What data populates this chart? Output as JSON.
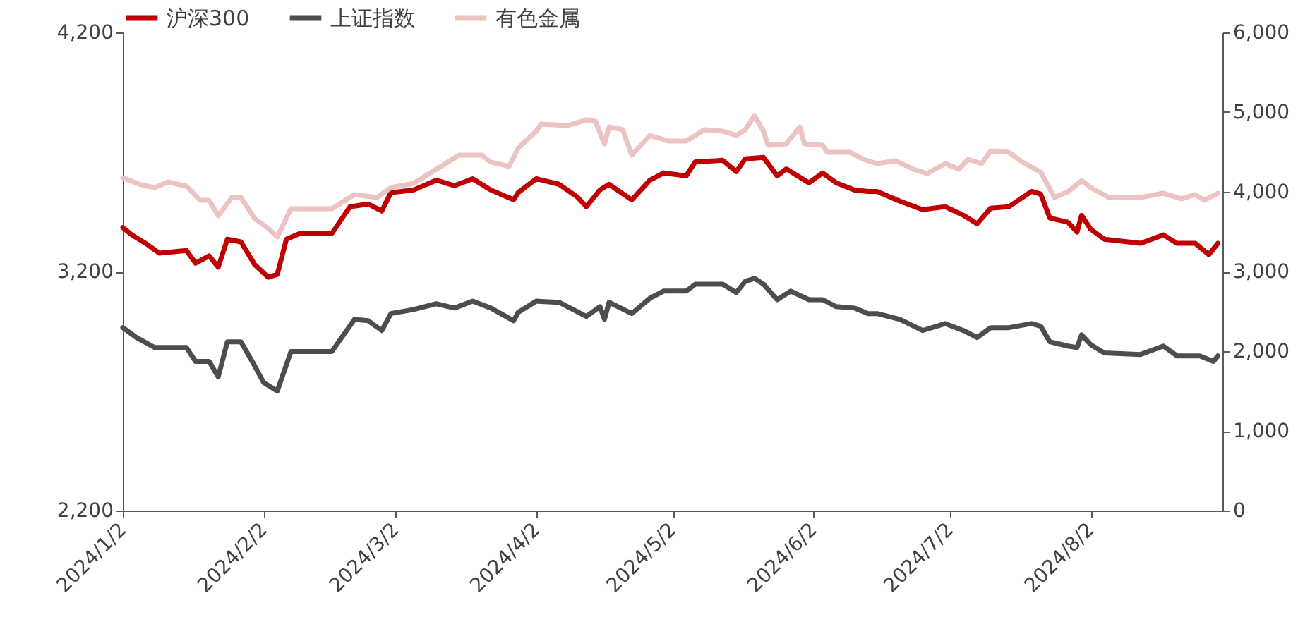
{
  "chart_data": {
    "type": "line",
    "legend": "top",
    "grid": false,
    "xlim": [
      "2024-01-02",
      "2024-08-31"
    ],
    "xticks": [
      {
        "value": "2024-01-02",
        "label": "2024/1/2"
      },
      {
        "value": "2024-02-02",
        "label": "2024/2/2"
      },
      {
        "value": "2024-03-02",
        "label": "2024/3/2"
      },
      {
        "value": "2024-04-02",
        "label": "2024/4/2"
      },
      {
        "value": "2024-05-02",
        "label": "2024/5/2"
      },
      {
        "value": "2024-06-02",
        "label": "2024/6/2"
      },
      {
        "value": "2024-07-02",
        "label": "2024/7/2"
      },
      {
        "value": "2024-08-02",
        "label": "2024/8/2"
      }
    ],
    "ylim": [
      2200,
      4200
    ],
    "yticks": [
      {
        "value": 2200,
        "label": "2,200"
      },
      {
        "value": 3200,
        "label": "3,200"
      },
      {
        "value": 4200,
        "label": "4,200"
      }
    ],
    "y2lim": [
      0,
      6000
    ],
    "y2ticks": [
      {
        "value": 0,
        "label": "0"
      },
      {
        "value": 1000,
        "label": "1,000"
      },
      {
        "value": 2000,
        "label": "2,000"
      },
      {
        "value": 3000,
        "label": "3,000"
      },
      {
        "value": 4000,
        "label": "4,000"
      },
      {
        "value": 5000,
        "label": "5,000"
      },
      {
        "value": 6000,
        "label": "6,000"
      }
    ],
    "series": [
      {
        "name": "沪深300",
        "color": "#c00000",
        "axis": "y",
        "x": [
          "2024-01-02",
          "2024-01-04",
          "2024-01-07",
          "2024-01-10",
          "2024-01-16",
          "2024-01-18",
          "2024-01-21",
          "2024-01-23",
          "2024-01-25",
          "2024-01-28",
          "2024-01-31",
          "2024-02-03",
          "2024-02-05",
          "2024-02-07",
          "2024-02-10",
          "2024-02-17",
          "2024-02-21",
          "2024-02-25",
          "2024-02-28",
          "2024-03-01",
          "2024-03-06",
          "2024-03-11",
          "2024-03-15",
          "2024-03-19",
          "2024-03-23",
          "2024-03-28",
          "2024-03-29",
          "2024-04-02",
          "2024-04-07",
          "2024-04-11",
          "2024-04-13",
          "2024-04-16",
          "2024-04-18",
          "2024-04-23",
          "2024-04-27",
          "2024-04-30",
          "2024-05-05",
          "2024-05-07",
          "2024-05-13",
          "2024-05-16",
          "2024-05-18",
          "2024-05-22",
          "2024-05-25",
          "2024-05-27",
          "2024-06-01",
          "2024-06-04",
          "2024-06-07",
          "2024-06-11",
          "2024-06-14",
          "2024-06-16",
          "2024-06-21",
          "2024-06-26",
          "2024-07-01",
          "2024-07-05",
          "2024-07-08",
          "2024-07-11",
          "2024-07-15",
          "2024-07-20",
          "2024-07-22",
          "2024-07-24",
          "2024-07-28",
          "2024-07-30",
          "2024-07-31",
          "2024-08-02",
          "2024-08-05",
          "2024-08-13",
          "2024-08-18",
          "2024-08-21",
          "2024-08-25",
          "2024-08-28",
          "2024-08-30"
        ],
        "values": [
          3384,
          3353,
          3318,
          3277,
          3288,
          3235,
          3265,
          3218,
          3335,
          3324,
          3229,
          3176,
          3188,
          3335,
          3359,
          3359,
          3471,
          3482,
          3453,
          3530,
          3541,
          3582,
          3559,
          3588,
          3541,
          3500,
          3530,
          3588,
          3565,
          3512,
          3471,
          3541,
          3565,
          3500,
          3582,
          3612,
          3600,
          3659,
          3665,
          3618,
          3671,
          3677,
          3600,
          3629,
          3571,
          3612,
          3571,
          3541,
          3535,
          3535,
          3494,
          3459,
          3471,
          3435,
          3400,
          3465,
          3471,
          3535,
          3524,
          3424,
          3406,
          3365,
          3435,
          3377,
          3335,
          3318,
          3353,
          3318,
          3318,
          3271,
          3318
        ]
      },
      {
        "name": "上证指数",
        "color": "#4d4d4d",
        "axis": "y",
        "x": [
          "2024-01-02",
          "2024-01-05",
          "2024-01-09",
          "2024-01-16",
          "2024-01-18",
          "2024-01-21",
          "2024-01-23",
          "2024-01-25",
          "2024-01-28",
          "2024-01-31",
          "2024-02-02",
          "2024-02-05",
          "2024-02-08",
          "2024-02-17",
          "2024-02-22",
          "2024-02-25",
          "2024-02-28",
          "2024-03-01",
          "2024-03-06",
          "2024-03-11",
          "2024-03-15",
          "2024-03-19",
          "2024-03-23",
          "2024-03-28",
          "2024-03-29",
          "2024-04-02",
          "2024-04-07",
          "2024-04-13",
          "2024-04-16",
          "2024-04-17",
          "2024-04-18",
          "2024-04-23",
          "2024-04-27",
          "2024-04-30",
          "2024-05-05",
          "2024-05-07",
          "2024-05-13",
          "2024-05-16",
          "2024-05-18",
          "2024-05-20",
          "2024-05-22",
          "2024-05-25",
          "2024-05-28",
          "2024-06-01",
          "2024-06-04",
          "2024-06-07",
          "2024-06-11",
          "2024-06-14",
          "2024-06-16",
          "2024-06-21",
          "2024-06-26",
          "2024-07-01",
          "2024-07-05",
          "2024-07-08",
          "2024-07-11",
          "2024-07-15",
          "2024-07-20",
          "2024-07-22",
          "2024-07-24",
          "2024-07-28",
          "2024-07-30",
          "2024-07-31",
          "2024-08-02",
          "2024-08-05",
          "2024-08-13",
          "2024-08-18",
          "2024-08-21",
          "2024-08-26",
          "2024-08-29",
          "2024-08-30"
        ],
        "values": [
          2965,
          2924,
          2882,
          2882,
          2824,
          2824,
          2759,
          2906,
          2906,
          2806,
          2735,
          2700,
          2865,
          2865,
          3000,
          2994,
          2953,
          3024,
          3041,
          3065,
          3047,
          3076,
          3047,
          2994,
          3029,
          3076,
          3071,
          3012,
          3053,
          3000,
          3071,
          3024,
          3088,
          3118,
          3118,
          3147,
          3147,
          3112,
          3159,
          3171,
          3147,
          3082,
          3118,
          3082,
          3082,
          3053,
          3047,
          3024,
          3024,
          3000,
          2953,
          2982,
          2953,
          2924,
          2965,
          2965,
          2982,
          2971,
          2906,
          2888,
          2882,
          2935,
          2894,
          2859,
          2853,
          2888,
          2847,
          2847,
          2824,
          2847
        ]
      },
      {
        "name": "有色金属",
        "color": "#ebc3c3",
        "axis": "y2",
        "x": [
          "2024-01-02",
          "2024-01-06",
          "2024-01-09",
          "2024-01-12",
          "2024-01-16",
          "2024-01-19",
          "2024-01-21",
          "2024-01-23",
          "2024-01-26",
          "2024-01-28",
          "2024-01-31",
          "2024-02-03",
          "2024-02-05",
          "2024-02-08",
          "2024-02-17",
          "2024-02-22",
          "2024-02-27",
          "2024-03-01",
          "2024-03-06",
          "2024-03-11",
          "2024-03-16",
          "2024-03-21",
          "2024-03-23",
          "2024-03-27",
          "2024-03-29",
          "2024-04-02",
          "2024-04-03",
          "2024-04-09",
          "2024-04-13",
          "2024-04-15",
          "2024-04-17",
          "2024-04-18",
          "2024-04-21",
          "2024-04-23",
          "2024-04-27",
          "2024-05-01",
          "2024-05-05",
          "2024-05-09",
          "2024-05-13",
          "2024-05-16",
          "2024-05-18",
          "2024-05-20",
          "2024-05-22",
          "2024-05-23",
          "2024-05-27",
          "2024-05-30",
          "2024-05-31",
          "2024-06-04",
          "2024-06-05",
          "2024-06-10",
          "2024-06-13",
          "2024-06-16",
          "2024-06-20",
          "2024-06-24",
          "2024-06-27",
          "2024-07-01",
          "2024-07-04",
          "2024-07-06",
          "2024-07-09",
          "2024-07-11",
          "2024-07-15",
          "2024-07-18",
          "2024-07-22",
          "2024-07-25",
          "2024-07-28",
          "2024-07-31",
          "2024-08-02",
          "2024-08-06",
          "2024-08-13",
          "2024-08-18",
          "2024-08-22",
          "2024-08-25",
          "2024-08-27",
          "2024-08-30"
        ],
        "values": [
          4177,
          4089,
          4053,
          4124,
          4071,
          3894,
          3894,
          3699,
          3929,
          3929,
          3664,
          3540,
          3434,
          3788,
          3788,
          3965,
          3929,
          4053,
          4106,
          4283,
          4460,
          4460,
          4372,
          4319,
          4549,
          4761,
          4850,
          4832,
          4903,
          4885,
          4602,
          4814,
          4779,
          4460,
          4708,
          4637,
          4637,
          4779,
          4761,
          4708,
          4779,
          4956,
          4761,
          4584,
          4602,
          4814,
          4602,
          4584,
          4496,
          4496,
          4407,
          4354,
          4390,
          4283,
          4230,
          4354,
          4283,
          4407,
          4354,
          4514,
          4496,
          4372,
          4248,
          3929,
          4000,
          4142,
          4053,
          3929,
          3929,
          3982,
          3912,
          3965,
          3894,
          3982
        ]
      }
    ]
  }
}
